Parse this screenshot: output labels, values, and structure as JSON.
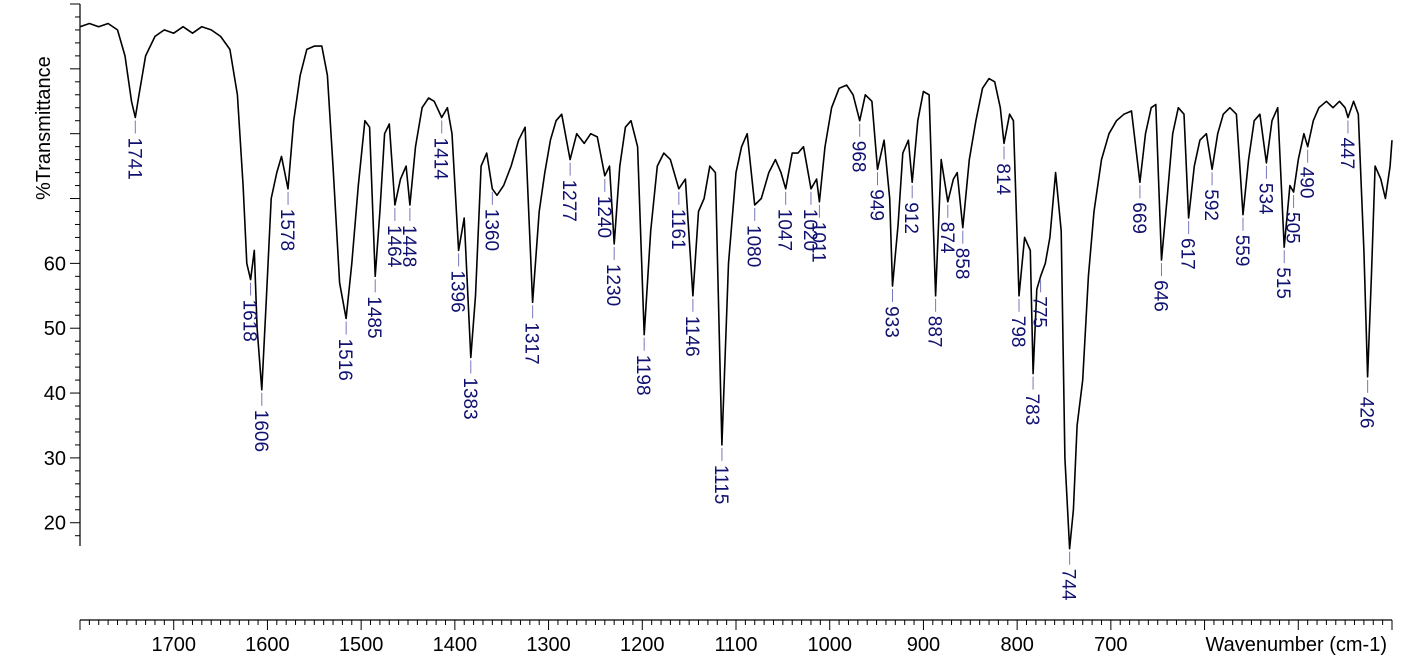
{
  "chart_data": {
    "type": "line",
    "title": "",
    "xlabel": "Wavenumber (cm-1)",
    "ylabel": "%Transmittance",
    "xlim": [
      1800,
      400
    ],
    "ylim": [
      5,
      100
    ],
    "x_reversed": true,
    "grid": false,
    "x_ticks": [
      1700,
      1600,
      1500,
      1400,
      1300,
      1200,
      1100,
      1000,
      900,
      800,
      700
    ],
    "y_ticks": [
      20,
      30,
      40,
      50,
      60
    ],
    "series": [
      {
        "values": [
          [
            1800,
            96.5
          ],
          [
            1790,
            97
          ],
          [
            1780,
            96.5
          ],
          [
            1770,
            97
          ],
          [
            1760,
            96
          ],
          [
            1752,
            92
          ],
          [
            1745,
            85
          ],
          [
            1741,
            82.5
          ],
          [
            1737,
            86
          ],
          [
            1730,
            92
          ],
          [
            1720,
            95
          ],
          [
            1710,
            96
          ],
          [
            1700,
            95.5
          ],
          [
            1690,
            96.5
          ],
          [
            1680,
            95.5
          ],
          [
            1670,
            96.5
          ],
          [
            1660,
            96
          ],
          [
            1650,
            95
          ],
          [
            1640,
            93
          ],
          [
            1632,
            86
          ],
          [
            1626,
            72
          ],
          [
            1622,
            60
          ],
          [
            1618,
            57.5
          ],
          [
            1614,
            62
          ],
          [
            1611,
            50
          ],
          [
            1606,
            40.5
          ],
          [
            1601,
            55
          ],
          [
            1596,
            70
          ],
          [
            1590,
            74
          ],
          [
            1585,
            76.5
          ],
          [
            1578,
            71.5
          ],
          [
            1572,
            82
          ],
          [
            1565,
            89
          ],
          [
            1558,
            93
          ],
          [
            1550,
            93.5
          ],
          [
            1542,
            93.5
          ],
          [
            1536,
            89
          ],
          [
            1530,
            75
          ],
          [
            1523,
            57
          ],
          [
            1516,
            51.5
          ],
          [
            1510,
            60
          ],
          [
            1503,
            72
          ],
          [
            1496,
            82
          ],
          [
            1491,
            81
          ],
          [
            1485,
            58
          ],
          [
            1480,
            68
          ],
          [
            1475,
            80
          ],
          [
            1470,
            81.5
          ],
          [
            1464,
            69
          ],
          [
            1458,
            73
          ],
          [
            1452,
            75
          ],
          [
            1448,
            69
          ],
          [
            1442,
            78
          ],
          [
            1435,
            84
          ],
          [
            1428,
            85.5
          ],
          [
            1422,
            85
          ],
          [
            1414,
            82.5
          ],
          [
            1408,
            84
          ],
          [
            1403,
            80
          ],
          [
            1396,
            62
          ],
          [
            1390,
            67
          ],
          [
            1383,
            45.5
          ],
          [
            1378,
            55
          ],
          [
            1372,
            75
          ],
          [
            1366,
            77
          ],
          [
            1360,
            71.5
          ],
          [
            1355,
            70.5
          ],
          [
            1348,
            72
          ],
          [
            1340,
            75
          ],
          [
            1332,
            79
          ],
          [
            1325,
            81
          ],
          [
            1317,
            54
          ],
          [
            1310,
            68
          ],
          [
            1304,
            74
          ],
          [
            1298,
            79
          ],
          [
            1292,
            82
          ],
          [
            1286,
            83
          ],
          [
            1277,
            76
          ],
          [
            1270,
            80
          ],
          [
            1262,
            78.5
          ],
          [
            1255,
            80
          ],
          [
            1248,
            79.5
          ],
          [
            1240,
            73.5
          ],
          [
            1235,
            75
          ],
          [
            1230,
            63
          ],
          [
            1224,
            75
          ],
          [
            1218,
            81
          ],
          [
            1212,
            82
          ],
          [
            1205,
            78
          ],
          [
            1198,
            49
          ],
          [
            1191,
            65
          ],
          [
            1184,
            75
          ],
          [
            1177,
            77
          ],
          [
            1170,
            76
          ],
          [
            1161,
            71.5
          ],
          [
            1154,
            73
          ],
          [
            1146,
            55
          ],
          [
            1140,
            68
          ],
          [
            1134,
            70
          ],
          [
            1128,
            75
          ],
          [
            1122,
            74
          ],
          [
            1115,
            32
          ],
          [
            1108,
            60
          ],
          [
            1100,
            74
          ],
          [
            1094,
            78
          ],
          [
            1088,
            80
          ],
          [
            1080,
            69
          ],
          [
            1073,
            70
          ],
          [
            1065,
            74
          ],
          [
            1058,
            76
          ],
          [
            1052,
            74
          ],
          [
            1047,
            71.5
          ],
          [
            1040,
            77
          ],
          [
            1034,
            77
          ],
          [
            1028,
            78
          ],
          [
            1020,
            71.5
          ],
          [
            1014,
            73
          ],
          [
            1011,
            69.5
          ],
          [
            1005,
            78
          ],
          [
            998,
            84
          ],
          [
            990,
            87
          ],
          [
            982,
            87.5
          ],
          [
            975,
            86
          ],
          [
            968,
            82
          ],
          [
            962,
            86
          ],
          [
            955,
            85
          ],
          [
            949,
            74.5
          ],
          [
            942,
            79
          ],
          [
            936,
            70
          ],
          [
            933,
            56.5
          ],
          [
            927,
            66
          ],
          [
            922,
            77
          ],
          [
            916,
            79
          ],
          [
            912,
            72.5
          ],
          [
            906,
            82
          ],
          [
            900,
            86.5
          ],
          [
            894,
            86
          ],
          [
            887,
            55
          ],
          [
            881,
            76
          ],
          [
            874,
            69.5
          ],
          [
            868,
            73
          ],
          [
            864,
            74
          ],
          [
            858,
            65.5
          ],
          [
            851,
            76
          ],
          [
            844,
            82
          ],
          [
            837,
            87
          ],
          [
            830,
            88.5
          ],
          [
            824,
            88
          ],
          [
            818,
            84
          ],
          [
            814,
            78.5
          ],
          [
            808,
            83
          ],
          [
            804,
            82
          ],
          [
            798,
            55
          ],
          [
            792,
            64
          ],
          [
            786,
            62
          ],
          [
            783,
            43
          ],
          [
            779,
            56
          ],
          [
            775,
            58
          ],
          [
            770,
            60
          ],
          [
            765,
            64
          ],
          [
            759,
            74
          ],
          [
            753,
            65
          ],
          [
            749,
            30
          ],
          [
            744,
            16
          ],
          [
            740,
            22
          ],
          [
            736,
            35
          ],
          [
            730,
            42
          ],
          [
            724,
            58
          ],
          [
            718,
            68
          ],
          [
            710,
            76
          ],
          [
            702,
            80
          ],
          [
            694,
            82
          ],
          [
            686,
            83
          ],
          [
            678,
            83.5
          ],
          [
            669,
            72.5
          ],
          [
            663,
            80
          ],
          [
            657,
            84
          ],
          [
            652,
            84.5
          ],
          [
            646,
            60.5
          ],
          [
            640,
            70
          ],
          [
            634,
            80
          ],
          [
            628,
            84
          ],
          [
            622,
            83
          ],
          [
            617,
            67
          ],
          [
            611,
            75
          ],
          [
            605,
            79
          ],
          [
            598,
            80
          ],
          [
            592,
            74.5
          ],
          [
            586,
            80
          ],
          [
            580,
            83
          ],
          [
            573,
            84
          ],
          [
            566,
            83
          ],
          [
            559,
            67.5
          ],
          [
            553,
            76
          ],
          [
            547,
            82
          ],
          [
            541,
            83
          ],
          [
            534,
            75.5
          ],
          [
            528,
            82
          ],
          [
            522,
            84
          ],
          [
            515,
            62.5
          ],
          [
            509,
            72
          ],
          [
            505,
            71
          ],
          [
            500,
            76
          ],
          [
            494,
            80
          ],
          [
            490,
            78
          ],
          [
            484,
            82
          ],
          [
            478,
            84
          ],
          [
            470,
            85
          ],
          [
            463,
            84
          ],
          [
            456,
            85
          ],
          [
            450,
            84
          ],
          [
            447,
            82.5
          ],
          [
            441,
            85
          ],
          [
            436,
            83
          ],
          [
            430,
            62
          ],
          [
            426,
            42.5
          ],
          [
            422,
            58
          ],
          [
            418,
            75
          ],
          [
            412,
            73
          ],
          [
            407,
            70
          ],
          [
            402,
            75
          ],
          [
            400,
            79
          ]
        ]
      }
    ],
    "peaks": [
      "1741",
      "1618",
      "1606",
      "1578",
      "1516",
      "1485",
      "1464",
      "1448",
      "1414",
      "1396",
      "1383",
      "1360",
      "1317",
      "1277",
      "1240",
      "1230",
      "1198",
      "1161",
      "1146",
      "1115",
      "1080",
      "1047",
      "1020",
      "1011",
      "968",
      "949",
      "933",
      "912",
      "887",
      "874",
      "858",
      "814",
      "798",
      "783",
      "775",
      "744",
      "669",
      "646",
      "617",
      "592",
      "559",
      "534",
      "515",
      "505",
      "490",
      "447",
      "426"
    ]
  }
}
